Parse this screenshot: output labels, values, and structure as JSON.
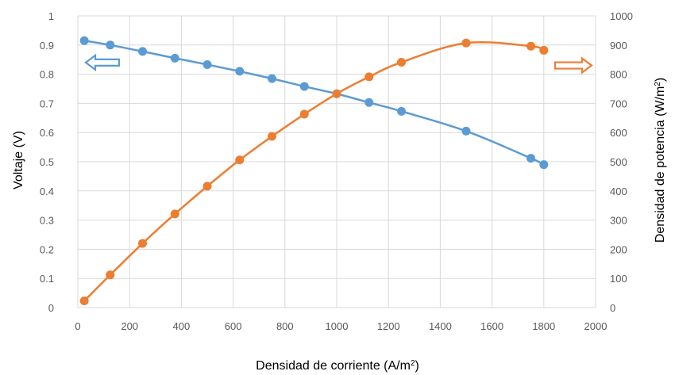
{
  "chart_data": {
    "type": "line",
    "title": "",
    "xlabel": "Densidad de corriente (A/m",
    "xlabel_sup": "2",
    "xlabel_end": ")",
    "ylabel_left": "Voltaje (V)",
    "ylabel_right": "Densidad de potencia (W/m",
    "ylabel_right_sup": "2",
    "ylabel_right_end": ")",
    "xlim": [
      0,
      2000
    ],
    "xticks": [
      0,
      200,
      400,
      600,
      800,
      1000,
      1200,
      1400,
      1600,
      1800,
      2000
    ],
    "ylim_left": [
      0,
      1
    ],
    "yticks_left": [
      "0",
      "0.1",
      "0.2",
      "0.3",
      "0.4",
      "0.5",
      "0.6",
      "0.7",
      "0.8",
      "0.9",
      "1"
    ],
    "ylim_right": [
      0,
      1000
    ],
    "yticks_right": [
      0,
      100,
      200,
      300,
      400,
      500,
      600,
      700,
      800,
      900,
      1000
    ],
    "grid": true,
    "colors": {
      "voltage": "#5B9BD5",
      "power": "#ED7D31",
      "grid": "#D9D9D9"
    },
    "arrows": [
      {
        "series": "voltage",
        "direction": "left"
      },
      {
        "series": "power",
        "direction": "right"
      }
    ],
    "series": [
      {
        "key": "voltage",
        "axis": "left",
        "x": [
          25,
          125,
          250,
          375,
          500,
          625,
          750,
          875,
          1000,
          1125,
          1250,
          1500,
          1750,
          1800
        ],
        "y": [
          0.915,
          0.9,
          0.878,
          0.855,
          0.833,
          0.81,
          0.785,
          0.758,
          0.733,
          0.703,
          0.673,
          0.605,
          0.512,
          0.49
        ]
      },
      {
        "key": "power",
        "axis": "right",
        "x": [
          25,
          125,
          250,
          375,
          500,
          625,
          750,
          875,
          1000,
          1125,
          1250,
          1500,
          1750,
          1800
        ],
        "y": [
          23,
          112,
          220,
          321,
          416,
          506,
          587,
          663,
          733,
          791,
          841,
          907,
          896,
          882
        ]
      }
    ]
  }
}
